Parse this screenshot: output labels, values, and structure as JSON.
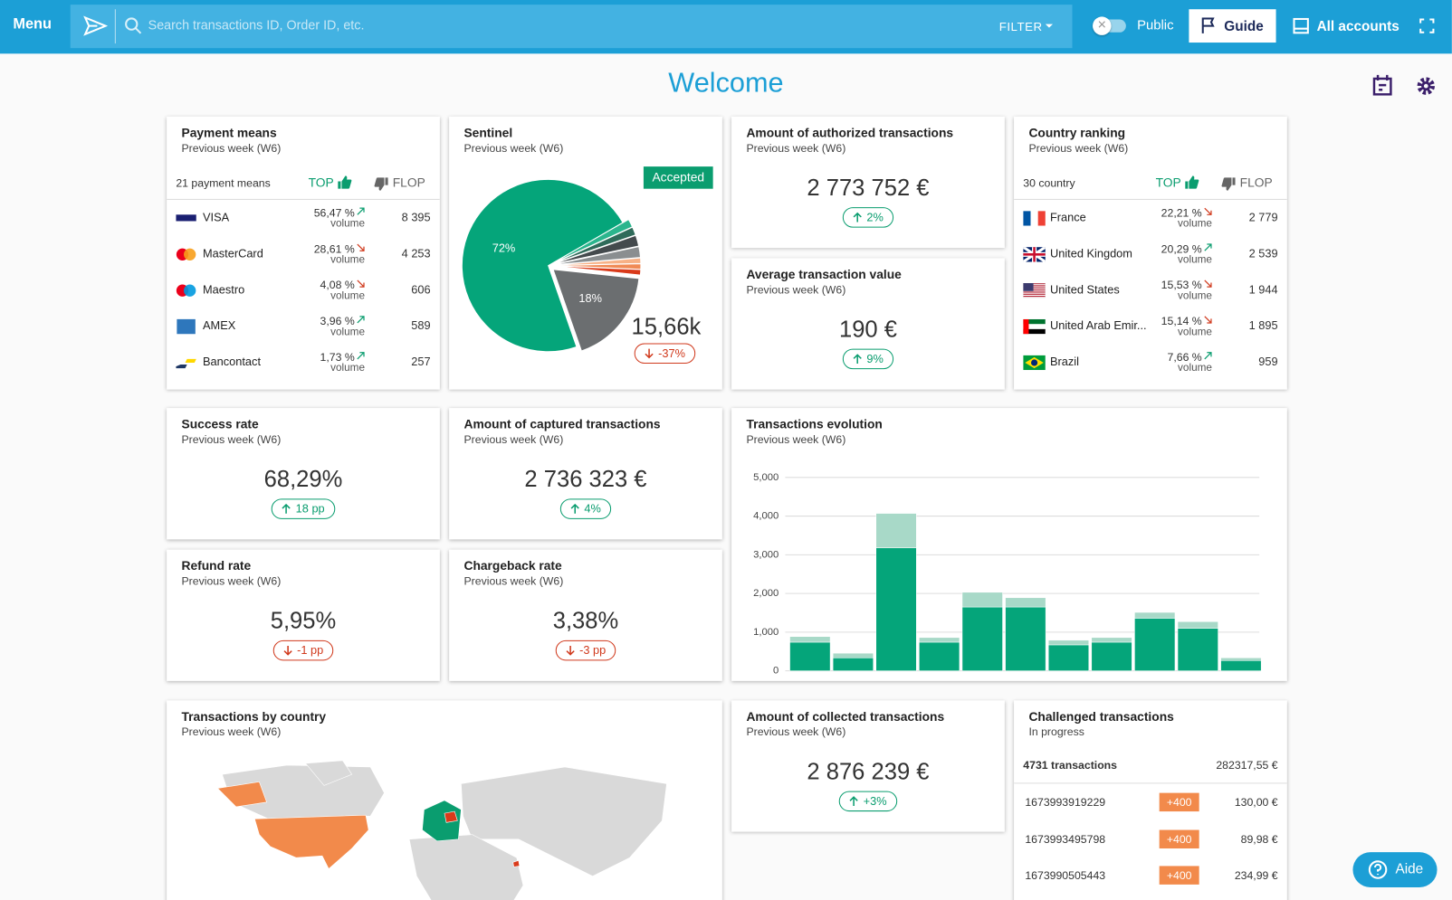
{
  "header": {
    "menu": "Menu",
    "search_placeholder": "Search transactions ID, Order ID, etc.",
    "filter": "FILTER",
    "public": "Public",
    "guide": "Guide",
    "accounts": "All accounts"
  },
  "page_title": "Welcome",
  "payment_means": {
    "title": "Payment means",
    "subtitle": "Previous week (W6)",
    "count": "21 payment means",
    "top": "TOP",
    "flop": "FLOP",
    "rows": [
      {
        "name": "VISA",
        "share": "56,47 %",
        "trend": "up",
        "unit": "volume",
        "count": "8 395"
      },
      {
        "name": "MasterCard",
        "share": "28,61 %",
        "trend": "down",
        "unit": "volume",
        "count": "4 253"
      },
      {
        "name": "Maestro",
        "share": "4,08 %",
        "trend": "down",
        "unit": "volume",
        "count": "606"
      },
      {
        "name": "AMEX",
        "share": "3,96 %",
        "trend": "up",
        "unit": "volume",
        "count": "589"
      },
      {
        "name": "Bancontact",
        "share": "1,73 %",
        "trend": "up",
        "unit": "volume",
        "count": "257"
      }
    ]
  },
  "sentinel": {
    "title": "Sentinel",
    "subtitle": "Previous week (W6)",
    "status": "Accepted",
    "total": "15,66k",
    "change": "-37%",
    "trend": "down",
    "chart_data": {
      "type": "pie",
      "values": [
        72,
        1.5,
        1.5,
        2,
        2,
        1,
        1,
        1,
        18
      ],
      "value_labels": [
        "72%",
        null,
        null,
        null,
        null,
        null,
        null,
        null,
        "18%"
      ],
      "colors": [
        "#05a57a",
        "#2bb58d",
        "#2f6b5a",
        "#444a4d",
        "#8a8e90",
        "#f7b186",
        "#f08a55",
        "#d93a1a",
        "#6b6e70"
      ]
    }
  },
  "authorized": {
    "title": "Amount of authorized transactions",
    "subtitle": "Previous week (W6)",
    "value": "2 773 752 €",
    "change": "2%",
    "trend": "up"
  },
  "average": {
    "title": "Average transaction value",
    "subtitle": "Previous week (W6)",
    "value": "190 €",
    "change": "9%",
    "trend": "up"
  },
  "countries": {
    "title": "Country ranking",
    "subtitle": "Previous week (W6)",
    "count": "30 country",
    "top": "TOP",
    "flop": "FLOP",
    "rows": [
      {
        "name": "France",
        "share": "22,21 %",
        "trend": "down",
        "unit": "volume",
        "count": "2 779"
      },
      {
        "name": "United Kingdom",
        "share": "20,29 %",
        "trend": "up",
        "unit": "volume",
        "count": "2 539"
      },
      {
        "name": "United States",
        "share": "15,53 %",
        "trend": "down",
        "unit": "volume",
        "count": "1 944"
      },
      {
        "name": "United Arab Emir...",
        "share": "15,14 %",
        "trend": "down",
        "unit": "volume",
        "count": "1 895"
      },
      {
        "name": "Brazil",
        "share": "7,66 %",
        "trend": "up",
        "unit": "volume",
        "count": "959"
      }
    ]
  },
  "success": {
    "title": "Success rate",
    "subtitle": "Previous week (W6)",
    "value": "68,29%",
    "change": "18 pp",
    "trend": "up"
  },
  "captured": {
    "title": "Amount of captured transactions",
    "subtitle": "Previous week (W6)",
    "value": "2 736 323 €",
    "change": "4%",
    "trend": "up"
  },
  "refund": {
    "title": "Refund rate",
    "subtitle": "Previous week (W6)",
    "value": "5,95%",
    "change": "-1 pp",
    "trend": "down"
  },
  "chargeback": {
    "title": "Chargeback rate",
    "subtitle": "Previous week (W6)",
    "value": "3,38%",
    "change": "-3 pp",
    "trend": "down"
  },
  "evolution": {
    "title": "Transactions evolution",
    "subtitle": "Previous week (W6)",
    "chart_data": {
      "type": "bar",
      "stacked": true,
      "grid": true,
      "categories": [
        null,
        null,
        null,
        null,
        null,
        null,
        null,
        null,
        null,
        null,
        null
      ],
      "series": [
        {
          "color": "#05a57a",
          "values": [
            740,
            335,
            3180,
            740,
            1650,
            1650,
            670,
            740,
            1360,
            1100,
            265
          ]
        },
        {
          "color": "#a8d9c8",
          "values": [
            145,
            120,
            890,
            120,
            380,
            240,
            120,
            120,
            150,
            170,
            70
          ]
        }
      ],
      "ylim": [
        0,
        5000
      ],
      "yticks": [
        0,
        {
          "value": 1000,
          "label": "1,000"
        },
        {
          "value": 2000,
          "label": "2,000"
        },
        {
          "value": 3000,
          "label": "3,000"
        },
        {
          "value": 4000,
          "label": "4,000"
        },
        {
          "value": 5000,
          "label": "5,000"
        }
      ]
    }
  },
  "map": {
    "title": "Transactions by country",
    "subtitle": "Previous week (W6)"
  },
  "collected": {
    "title": "Amount of collected transactions",
    "subtitle": "Previous week (W6)",
    "value": "2 876 239 €",
    "change": "+3%",
    "trend": "up"
  },
  "challenged": {
    "title": "Challenged transactions",
    "subtitle": "In progress",
    "count": "4731 transactions",
    "total": "282317,55 €",
    "rows": [
      {
        "id": "1673993919229",
        "score": "+400",
        "amount": "130,00 €"
      },
      {
        "id": "1673993495798",
        "score": "+400",
        "amount": "89,98 €"
      },
      {
        "id": "1673990505443",
        "score": "+400",
        "amount": "234,99 €"
      }
    ]
  },
  "help": "Aide"
}
